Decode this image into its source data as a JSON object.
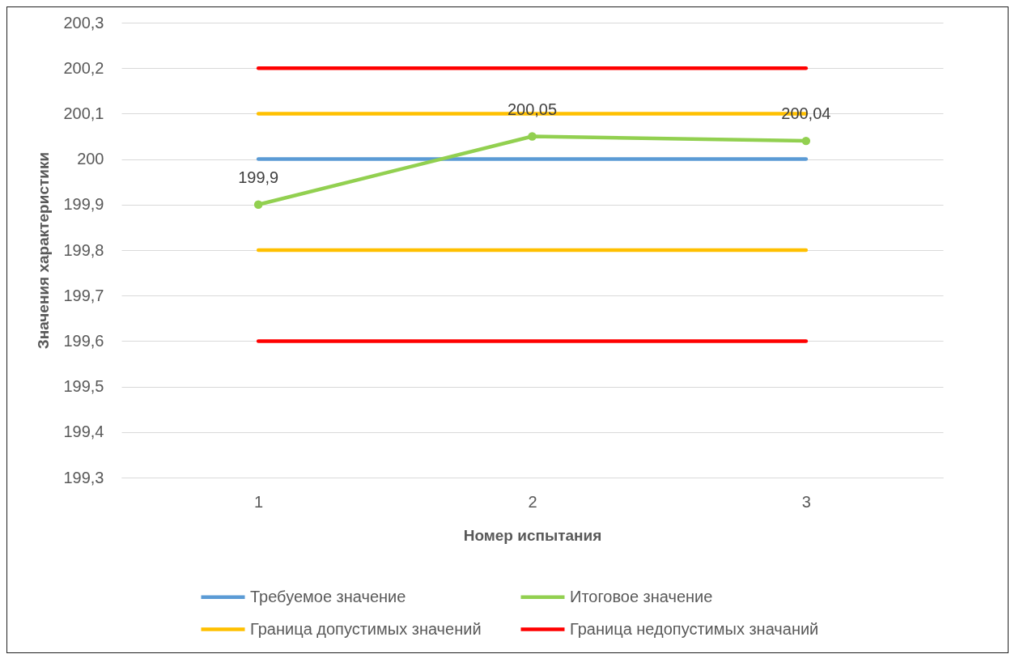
{
  "chart_data": {
    "type": "line",
    "xlabel": "Номер испытания",
    "ylabel": "Значения характеристики",
    "categories": [
      "1",
      "2",
      "3"
    ],
    "series": [
      {
        "name": "Требуемое значение",
        "color": "#5b9bd5",
        "values": [
          200,
          200,
          200
        ]
      },
      {
        "name": "Итоговое значение",
        "color": "#92d050",
        "values": [
          199.9,
          200.05,
          200.04
        ],
        "marker": "circle",
        "value_labels": [
          "199,9",
          "200,05",
          "200,04"
        ]
      },
      {
        "name": "Граница допустимых значений",
        "color": "#ffc000",
        "values": [
          200.1,
          200.1,
          200.1
        ]
      },
      {
        "name": "Граница недопустимых значаний",
        "color": "#ff0000",
        "values": [
          200.2,
          200.2,
          200.2
        ]
      },
      {
        "color": "#ffc000",
        "values": [
          199.8,
          199.8,
          199.8
        ]
      },
      {
        "color": "#ff0000",
        "values": [
          199.6,
          199.6,
          199.6
        ]
      }
    ],
    "ylim": [
      199.3,
      200.3
    ],
    "yticks": [
      {
        "value": 199.3,
        "label": "199,3"
      },
      {
        "value": 199.4,
        "label": "199,4"
      },
      {
        "value": 199.5,
        "label": "199,5"
      },
      {
        "value": 199.6,
        "label": "199,6"
      },
      {
        "value": 199.7,
        "label": "199,7"
      },
      {
        "value": 199.8,
        "label": "199,8"
      },
      {
        "value": 199.9,
        "label": "199,9"
      },
      200,
      {
        "value": 200.1,
        "label": "200,1"
      },
      {
        "value": 200.2,
        "label": "200,2"
      },
      {
        "value": 200.3,
        "label": "200,3"
      }
    ],
    "grid": "y",
    "legend": "bottom"
  }
}
